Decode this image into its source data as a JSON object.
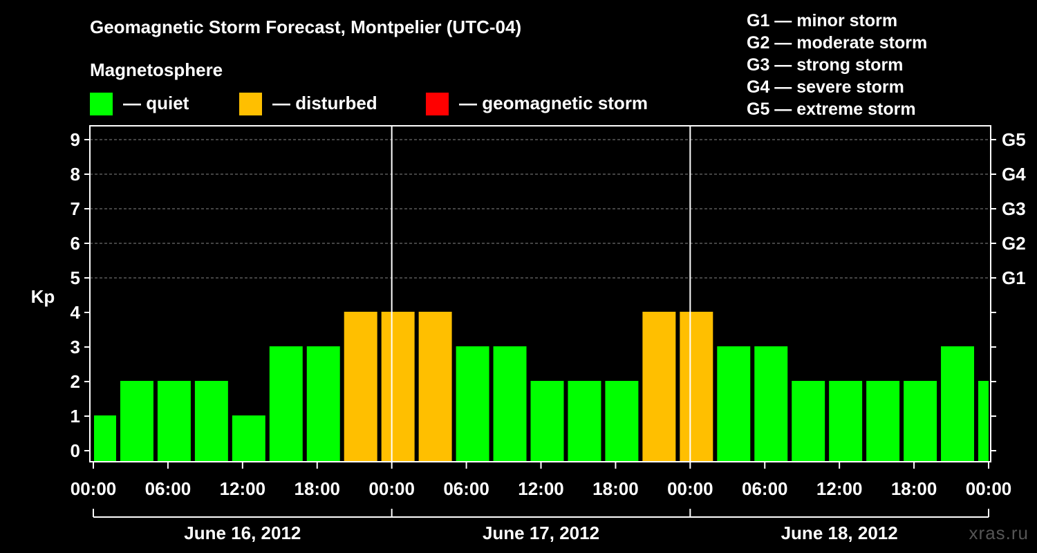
{
  "title": "Geomagnetic Storm Forecast, Montpelier (UTC-04)",
  "legend": {
    "heading": "Magnetosphere",
    "items": [
      {
        "label": "— quiet",
        "color": "#00ff00"
      },
      {
        "label": "— disturbed",
        "color": "#ffbf00"
      },
      {
        "label": "— geomagnetic storm",
        "color": "#ff0000"
      }
    ]
  },
  "storm_scale": [
    "G1 — minor storm",
    "G2 — moderate storm",
    "G3 — strong storm",
    "G4 — severe storm",
    "G5 — extreme storm"
  ],
  "watermark": "xras.ru",
  "chart_data": {
    "type": "bar",
    "title": "Geomagnetic Storm Forecast, Montpelier (UTC-04)",
    "ylabel": "Kp",
    "ylim": [
      0,
      9
    ],
    "yticks": [
      "0",
      "1",
      "2",
      "3",
      "4",
      "5",
      "6",
      "7",
      "8",
      "9"
    ],
    "right_ticks": [
      {
        "kp": 5,
        "label": "G1"
      },
      {
        "kp": 6,
        "label": "G2"
      },
      {
        "kp": 7,
        "label": "G3"
      },
      {
        "kp": 8,
        "label": "G4"
      },
      {
        "kp": 9,
        "label": "G5"
      }
    ],
    "xticks": [
      "00:00",
      "06:00",
      "12:00",
      "18:00",
      "00:00",
      "06:00",
      "12:00",
      "18:00",
      "00:00",
      "06:00",
      "12:00",
      "18:00",
      "00:00"
    ],
    "day_labels": [
      "June 16, 2012",
      "June 17, 2012",
      "June 18, 2012"
    ],
    "x_range_hours": [
      0,
      72
    ],
    "day_separators_hours": [
      24,
      48
    ],
    "bars": [
      {
        "start": 0,
        "end": 2,
        "kp": 1,
        "level": "quiet"
      },
      {
        "start": 2,
        "end": 5,
        "kp": 2,
        "level": "quiet"
      },
      {
        "start": 5,
        "end": 8,
        "kp": 2,
        "level": "quiet"
      },
      {
        "start": 8,
        "end": 11,
        "kp": 2,
        "level": "quiet"
      },
      {
        "start": 11,
        "end": 14,
        "kp": 1,
        "level": "quiet"
      },
      {
        "start": 14,
        "end": 17,
        "kp": 3,
        "level": "quiet"
      },
      {
        "start": 17,
        "end": 20,
        "kp": 3,
        "level": "quiet"
      },
      {
        "start": 20,
        "end": 23,
        "kp": 4,
        "level": "disturbed"
      },
      {
        "start": 23,
        "end": 26,
        "kp": 4,
        "level": "disturbed"
      },
      {
        "start": 26,
        "end": 29,
        "kp": 4,
        "level": "disturbed"
      },
      {
        "start": 29,
        "end": 32,
        "kp": 3,
        "level": "quiet"
      },
      {
        "start": 32,
        "end": 35,
        "kp": 3,
        "level": "quiet"
      },
      {
        "start": 35,
        "end": 38,
        "kp": 2,
        "level": "quiet"
      },
      {
        "start": 38,
        "end": 41,
        "kp": 2,
        "level": "quiet"
      },
      {
        "start": 41,
        "end": 44,
        "kp": 2,
        "level": "quiet"
      },
      {
        "start": 44,
        "end": 47,
        "kp": 4,
        "level": "disturbed"
      },
      {
        "start": 47,
        "end": 50,
        "kp": 4,
        "level": "disturbed"
      },
      {
        "start": 50,
        "end": 53,
        "kp": 3,
        "level": "quiet"
      },
      {
        "start": 53,
        "end": 56,
        "kp": 3,
        "level": "quiet"
      },
      {
        "start": 56,
        "end": 59,
        "kp": 2,
        "level": "quiet"
      },
      {
        "start": 59,
        "end": 62,
        "kp": 2,
        "level": "quiet"
      },
      {
        "start": 62,
        "end": 65,
        "kp": 2,
        "level": "quiet"
      },
      {
        "start": 65,
        "end": 68,
        "kp": 2,
        "level": "quiet"
      },
      {
        "start": 68,
        "end": 71,
        "kp": 3,
        "level": "quiet"
      },
      {
        "start": 71,
        "end": 72,
        "kp": 2,
        "level": "quiet"
      }
    ],
    "colors": {
      "quiet": "#00ff00",
      "disturbed": "#ffbf00",
      "storm": "#ff0000"
    },
    "grid": true
  }
}
